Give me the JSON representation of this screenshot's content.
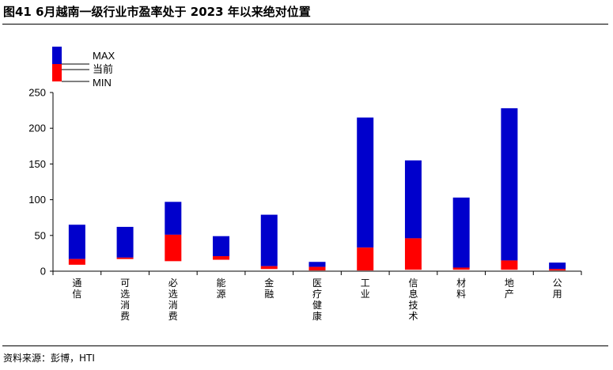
{
  "figure": {
    "title": "图41 6月越南一级行业市盈率处于 2023 年以来绝对位置",
    "source": "资料来源：彭博，HTI"
  },
  "colors": {
    "max": "#0000CC",
    "current": "#FF0000",
    "axis": "#000000"
  },
  "chart_data": {
    "type": "bar",
    "subtype": "floating-range",
    "title": "",
    "xlabel": "",
    "ylabel": "",
    "ylim": [
      0,
      250
    ],
    "yticks": [
      "0",
      "50",
      "100",
      "150",
      "200",
      "250"
    ],
    "grid": false,
    "legend_position": "top-left",
    "legend": [
      {
        "key": "max",
        "label": "MAX"
      },
      {
        "key": "current",
        "label": "当前"
      },
      {
        "key": "min",
        "label": "MIN"
      }
    ],
    "categories": [
      "通信",
      "可选消费",
      "必选消费",
      "能源",
      "金融",
      "医疗健康",
      "工业",
      "信息技术",
      "材料",
      "地产",
      "公用"
    ],
    "min": [
      9,
      17,
      14,
      16,
      3,
      1,
      1,
      2,
      2,
      2,
      1
    ],
    "current": [
      17,
      19,
      51,
      21,
      7,
      6,
      33,
      46,
      5,
      15,
      3
    ],
    "max": [
      65,
      62,
      97,
      49,
      79,
      13,
      215,
      155,
      103,
      228,
      12
    ]
  }
}
